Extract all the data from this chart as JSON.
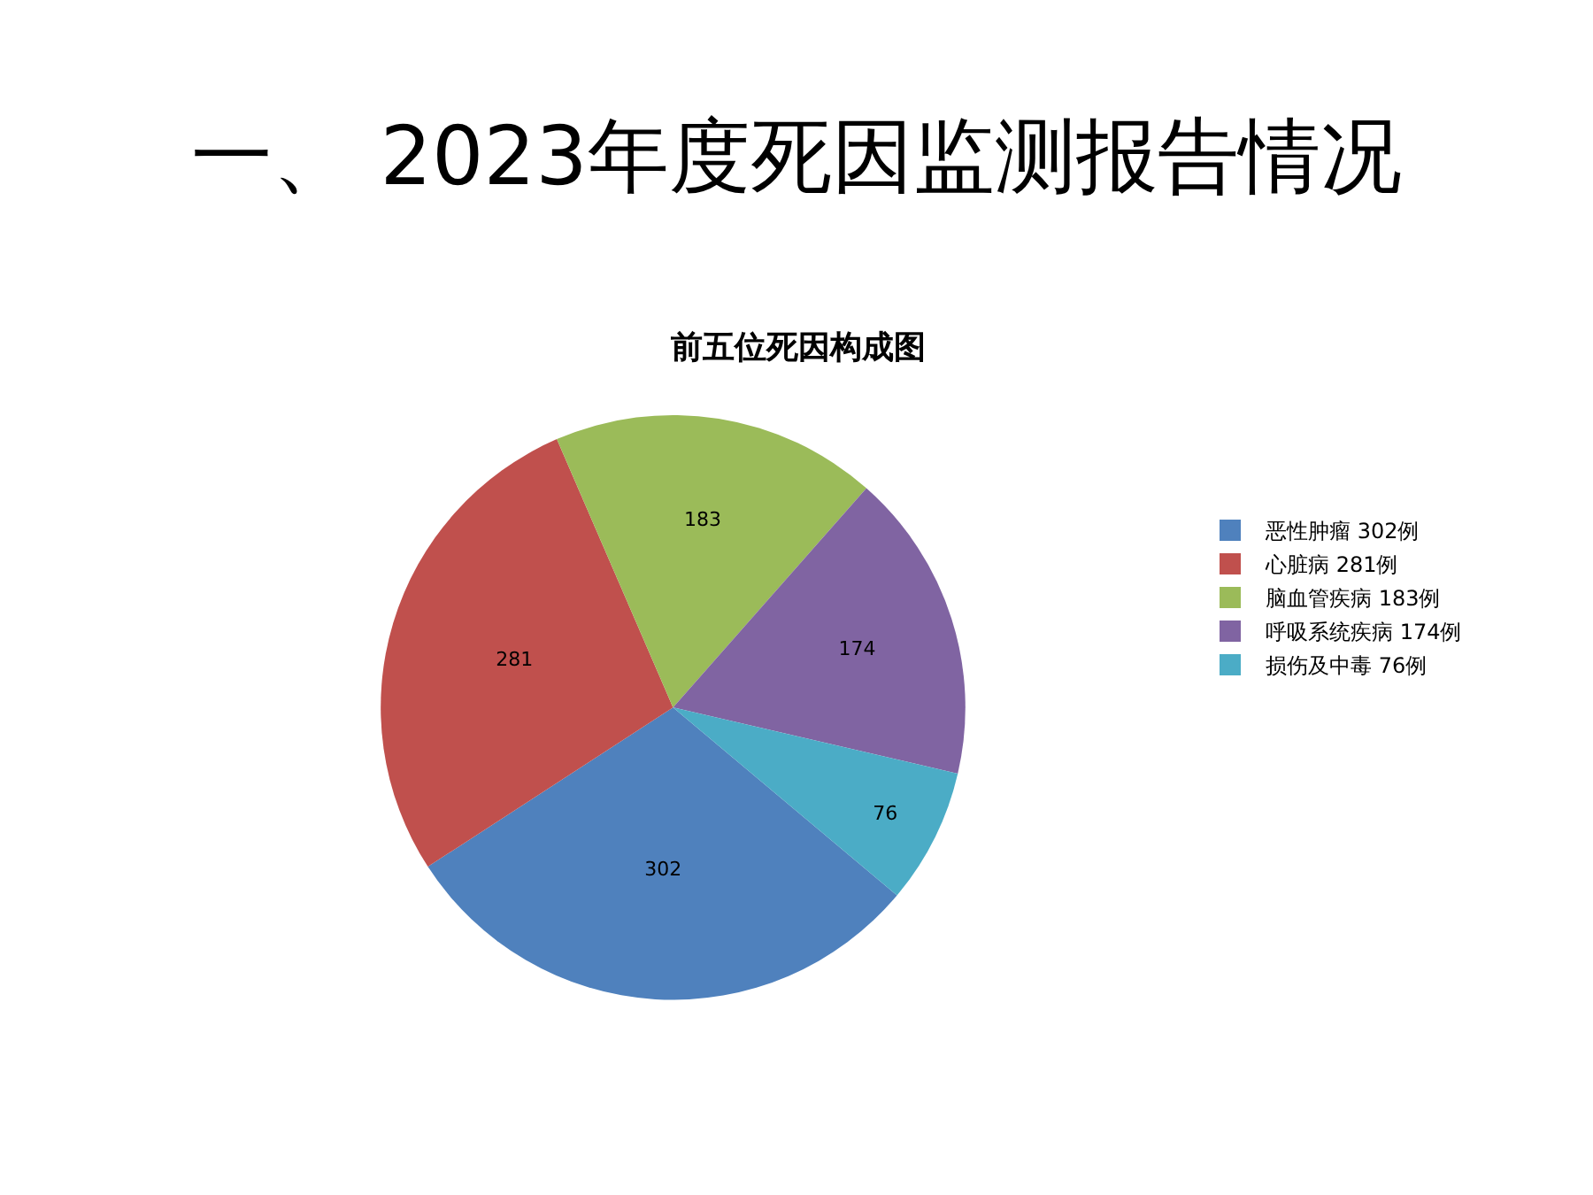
{
  "chart_data": {
    "type": "pie",
    "title": "一、 2023年度死因监测报告情况",
    "subtitle": "前五位死因构成图",
    "categories": [
      "恶性肿瘤 302例",
      "心脏病 281例",
      "脑血管疾病 183例",
      "呼吸系统疾病 174例",
      "损伤及中毒 76例"
    ],
    "values": [
      302,
      281,
      183,
      174,
      76
    ],
    "colors": [
      "#4f81bd",
      "#c0504d",
      "#9bbb59",
      "#8064a2",
      "#4bacc6"
    ],
    "data_labels": true,
    "legend": "right"
  }
}
